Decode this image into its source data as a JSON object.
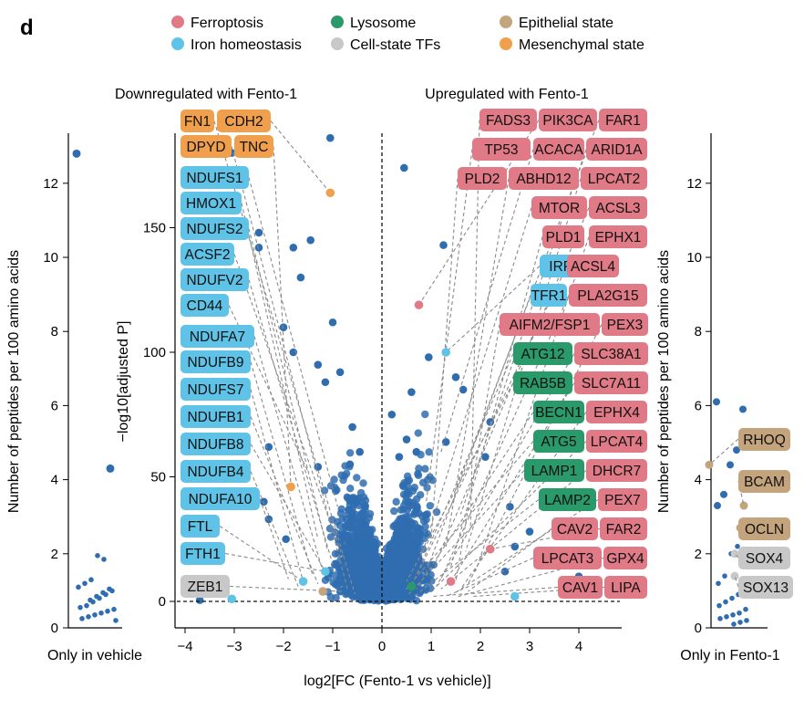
{
  "panel_letter": "d",
  "colors": {
    "Ferroptosis": "#e07a86",
    "Iron homeostasis": "#5ec3e6",
    "Lysosome": "#2a9a6a",
    "Cell-state TFs": "#c8c8c8",
    "Epithelial state": "#c4a47c",
    "Mesenchymal state": "#f0a04c",
    "Other": "#2f6db0"
  },
  "legend": [
    {
      "name": "Ferroptosis",
      "color": "#e07a86"
    },
    {
      "name": "Lysosome",
      "color": "#2a9a6a"
    },
    {
      "name": "Epithelial state",
      "color": "#c4a47c"
    },
    {
      "name": "Iron homeostasis",
      "color": "#5ec3e6"
    },
    {
      "name": "Cell-state TFs",
      "color": "#c8c8c8"
    },
    {
      "name": "Mesenchymal state",
      "color": "#f0a04c"
    }
  ],
  "chart_data": [
    {
      "type": "scatter",
      "name": "main",
      "xlabel": "log2[FC (Fento-1 vs vehicle)]",
      "ylabel": "−log10[adjusted P]",
      "xlim": [
        -4.3,
        4.8
      ],
      "ylim": [
        -3,
        190
      ],
      "xticks": [
        -4,
        -3,
        -2,
        -1,
        0,
        1,
        2,
        3,
        4
      ],
      "yticks": [
        0,
        50,
        100,
        150
      ],
      "annotations_text": [
        "Downregulated with Fento-1",
        "Upregulated with Fento-1"
      ],
      "reference_lines": {
        "x": 0,
        "y": 0
      },
      "highlighted_points": [
        {
          "x": -1.05,
          "y": 164,
          "category": "Mesenchymal state"
        },
        {
          "x": 0.75,
          "y": 119,
          "category": "Ferroptosis"
        },
        {
          "x": 1.3,
          "y": 100,
          "category": "Iron homeostasis"
        },
        {
          "x": -1.85,
          "y": 46,
          "category": "Mesenchymal state"
        },
        {
          "x": 2.2,
          "y": 21,
          "category": "Ferroptosis"
        },
        {
          "x": -1.15,
          "y": 12,
          "category": "Iron homeostasis"
        },
        {
          "x": -1.6,
          "y": 8,
          "category": "Iron homeostasis"
        },
        {
          "x": -1.2,
          "y": 4,
          "category": "Epithelial state"
        },
        {
          "x": 0.6,
          "y": 6,
          "category": "Lysosome"
        },
        {
          "x": 1.4,
          "y": 8,
          "category": "Ferroptosis"
        },
        {
          "x": 2.7,
          "y": 2,
          "category": "Iron homeostasis"
        },
        {
          "x": -3.05,
          "y": 1,
          "category": "Iron homeostasis"
        }
      ],
      "gene_labels": [
        {
          "gene": "FN1",
          "category": "Mesenchymal state",
          "x": -0.55,
          "y": 3
        },
        {
          "gene": "CDH2",
          "category": "Mesenchymal state",
          "x": -1.05,
          "y": 164
        },
        {
          "gene": "DPYD",
          "category": "Mesenchymal state",
          "x": -0.7,
          "y": 5
        },
        {
          "gene": "TNC",
          "category": "Mesenchymal state",
          "x": -1.85,
          "y": 46
        },
        {
          "gene": "NDUFS1",
          "category": "Iron homeostasis",
          "x": -0.9,
          "y": 38
        },
        {
          "gene": "HMOX1",
          "category": "Iron homeostasis",
          "x": -1.3,
          "y": 25
        },
        {
          "gene": "NDUFS2",
          "category": "Iron homeostasis",
          "x": -1.1,
          "y": 20
        },
        {
          "gene": "ACSF2",
          "category": "Iron homeostasis",
          "x": -0.8,
          "y": 18
        },
        {
          "gene": "NDUFV2",
          "category": "Iron homeostasis",
          "x": -1.0,
          "y": 15
        },
        {
          "gene": "CD44",
          "category": "Iron homeostasis",
          "x": -1.5,
          "y": 52
        },
        {
          "gene": "NDUFA7",
          "category": "Iron homeostasis",
          "x": -1.2,
          "y": 12
        },
        {
          "gene": "NDUFB9",
          "category": "Iron homeostasis",
          "x": -1.4,
          "y": 10
        },
        {
          "gene": "NDUFS7",
          "category": "Iron homeostasis",
          "x": -1.6,
          "y": 8
        },
        {
          "gene": "NDUFB1",
          "category": "Iron homeostasis",
          "x": -1.3,
          "y": 7
        },
        {
          "gene": "NDUFB8",
          "category": "Iron homeostasis",
          "x": -1.15,
          "y": 12
        },
        {
          "gene": "NDUFB4",
          "category": "Iron homeostasis",
          "x": -1.7,
          "y": 6
        },
        {
          "gene": "NDUFA10",
          "category": "Iron homeostasis",
          "x": -1.9,
          "y": 9
        },
        {
          "gene": "FTL",
          "category": "Iron homeostasis",
          "x": -1.6,
          "y": 8
        },
        {
          "gene": "FTH1",
          "category": "Iron homeostasis",
          "x": -1.15,
          "y": 12
        },
        {
          "gene": "ZEB1",
          "category": "Cell-state TFs",
          "x": -0.8,
          "y": 4
        },
        {
          "gene": "FADS3",
          "category": "Ferroptosis",
          "x": 1.8,
          "y": 30
        },
        {
          "gene": "PIK3CA",
          "category": "Ferroptosis",
          "x": 0.75,
          "y": 119
        },
        {
          "gene": "FAR1",
          "category": "Ferroptosis",
          "x": 1.5,
          "y": 45
        },
        {
          "gene": "TP53",
          "category": "Ferroptosis",
          "x": 0.9,
          "y": 40
        },
        {
          "gene": "ACACA",
          "category": "Ferroptosis",
          "x": 1.2,
          "y": 60
        },
        {
          "gene": "ARID1A",
          "category": "Ferroptosis",
          "x": 1.6,
          "y": 35
        },
        {
          "gene": "PLD2",
          "category": "Ferroptosis",
          "x": 1.0,
          "y": 25
        },
        {
          "gene": "ABHD12",
          "category": "Ferroptosis",
          "x": 1.3,
          "y": 22
        },
        {
          "gene": "LPCAT2",
          "category": "Ferroptosis",
          "x": 1.7,
          "y": 20
        },
        {
          "gene": "MTOR",
          "category": "Ferroptosis",
          "x": 0.8,
          "y": 18
        },
        {
          "gene": "ACSL3",
          "category": "Ferroptosis",
          "x": 1.1,
          "y": 16
        },
        {
          "gene": "PLD1",
          "category": "Ferroptosis",
          "x": 1.4,
          "y": 14
        },
        {
          "gene": "EPHX1",
          "category": "Ferroptosis",
          "x": 1.9,
          "y": 12
        },
        {
          "gene": "IRP2",
          "category": "Iron homeostasis",
          "x": 1.3,
          "y": 100
        },
        {
          "gene": "ACSL4",
          "category": "Ferroptosis",
          "x": 0.7,
          "y": 10
        },
        {
          "gene": "TFR1",
          "category": "Iron homeostasis",
          "x": 0.9,
          "y": 12
        },
        {
          "gene": "PLA2G15",
          "category": "Ferroptosis",
          "x": 1.2,
          "y": 9
        },
        {
          "gene": "AIFM2/FSP1",
          "category": "Ferroptosis",
          "x": 1.5,
          "y": 8
        },
        {
          "gene": "PEX3",
          "category": "Ferroptosis",
          "x": 1.75,
          "y": 7
        },
        {
          "gene": "ATG12",
          "category": "Lysosome",
          "x": 0.6,
          "y": 6
        },
        {
          "gene": "SLC38A1",
          "category": "Ferroptosis",
          "x": 1.1,
          "y": 6
        },
        {
          "gene": "RAB5B",
          "category": "Lysosome",
          "x": 0.5,
          "y": 8
        },
        {
          "gene": "SLC7A11",
          "category": "Ferroptosis",
          "x": 1.4,
          "y": 8
        },
        {
          "gene": "BECN1",
          "category": "Lysosome",
          "x": 0.7,
          "y": 5
        },
        {
          "gene": "EPHX4",
          "category": "Ferroptosis",
          "x": 1.6,
          "y": 5
        },
        {
          "gene": "ATG5",
          "category": "Lysosome",
          "x": 0.45,
          "y": 4
        },
        {
          "gene": "LPCAT4",
          "category": "Ferroptosis",
          "x": 1.0,
          "y": 4
        },
        {
          "gene": "LAMP1",
          "category": "Lysosome",
          "x": 0.55,
          "y": 3
        },
        {
          "gene": "DHCR7",
          "category": "Ferroptosis",
          "x": 1.2,
          "y": 5
        },
        {
          "gene": "LAMP2",
          "category": "Lysosome",
          "x": 0.65,
          "y": 2
        },
        {
          "gene": "PEX7",
          "category": "Ferroptosis",
          "x": 1.45,
          "y": 3
        },
        {
          "gene": "CAV2",
          "category": "Ferroptosis",
          "x": 1.75,
          "y": 4
        },
        {
          "gene": "FAR2",
          "category": "Ferroptosis",
          "x": 2.2,
          "y": 21
        },
        {
          "gene": "LPCAT3",
          "category": "Ferroptosis",
          "x": 1.3,
          "y": 2
        },
        {
          "gene": "GPX4",
          "category": "Ferroptosis",
          "x": 1.55,
          "y": 2
        },
        {
          "gene": "CAV1",
          "category": "Ferroptosis",
          "x": 1.0,
          "y": 2
        },
        {
          "gene": "LIPA",
          "category": "Ferroptosis",
          "x": 1.85,
          "y": 2
        }
      ]
    },
    {
      "type": "scatter",
      "name": "only-in-vehicle",
      "xlabel": "Only in vehicle",
      "ylabel": "Number of peptides per 100 amino acids",
      "ylim": [
        0,
        13.5
      ],
      "yticks": [
        0,
        2,
        4,
        6,
        8,
        10,
        12
      ],
      "points": [
        12.8,
        4.3,
        1.85,
        1.95,
        1.3,
        1.2,
        1.1,
        1.0,
        0.9,
        0.8,
        0.7,
        0.6,
        0.55,
        0.5,
        0.45,
        0.4,
        0.35,
        0.3,
        0.25,
        0.2,
        1.05,
        0.95,
        0.85,
        0.75
      ]
    },
    {
      "type": "scatter",
      "name": "only-in-fento-1",
      "xlabel": "Only in Fento-1",
      "ylabel": "Number of peptides per 100 amino acids",
      "ylim": [
        0,
        13.5
      ],
      "yticks": [
        0,
        2,
        4,
        6,
        8,
        10,
        12
      ],
      "points": [
        6.1,
        5.9,
        4.8,
        4.4,
        3.6,
        3.3,
        2.7,
        2.2,
        2.0,
        1.4,
        1.2,
        1.0,
        0.9,
        0.8,
        0.7,
        0.6,
        0.5,
        0.4,
        0.35,
        0.3,
        0.25,
        0.2,
        0.15,
        0.1
      ],
      "gene_labels": [
        {
          "gene": "RHOQ",
          "category": "Epithelial state",
          "value": 4.4
        },
        {
          "gene": "BCAM",
          "category": "Epithelial state",
          "value": 3.3
        },
        {
          "gene": "OCLN",
          "category": "Epithelial state",
          "value": 2.7
        },
        {
          "gene": "SOX4",
          "category": "Cell-state TFs",
          "value": 2.0
        },
        {
          "gene": "SOX13",
          "category": "Cell-state TFs",
          "value": 1.4
        }
      ]
    }
  ]
}
